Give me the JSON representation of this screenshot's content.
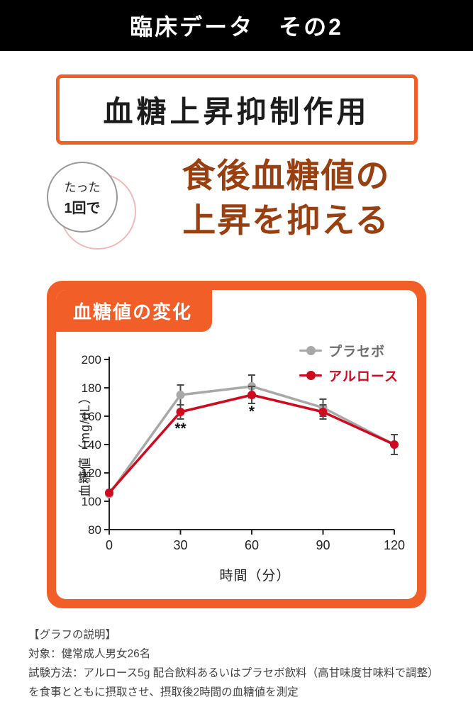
{
  "header": {
    "title": "臨床データ　その2"
  },
  "title_box": {
    "label": "血糖上昇抑制作用"
  },
  "bubble": {
    "line1": "たった",
    "line2": "1回で"
  },
  "headline": {
    "line1": "食後血糖値の",
    "line2": "上昇を抑える"
  },
  "chart_panel": {
    "label": "血糖値の変化"
  },
  "chart_data": {
    "type": "line",
    "title": "血糖値の変化",
    "x": [
      0,
      30,
      60,
      90,
      120
    ],
    "xlabel": "時間（分）",
    "ylabel": "血糖値（mg/dL）",
    "ylim": [
      80,
      200
    ],
    "yticks": [
      80,
      100,
      120,
      140,
      160,
      180,
      200
    ],
    "grid": false,
    "legend_position": "top-right",
    "series": [
      {
        "name": "プラセボ",
        "color": "#a8a8a8",
        "label_color": "#6e6e6e",
        "values": [
          105,
          175,
          181,
          166,
          140
        ],
        "error": [
          0,
          7,
          8,
          6,
          0
        ]
      },
      {
        "name": "アルロース",
        "color": "#cf0a1e",
        "label_color": "#cf0a1e",
        "values": [
          106,
          163,
          175,
          163,
          140
        ],
        "error": [
          0,
          5,
          6,
          5,
          7
        ]
      }
    ],
    "annotations": [
      {
        "text": "**",
        "x": 30,
        "y": 148
      },
      {
        "text": "*",
        "x": 60,
        "y": 160
      }
    ]
  },
  "notes": {
    "heading": "【グラフの説明】",
    "line1": "対象：健常成人男女26名",
    "line2": "試験方法：アルロース5g 配合飲料あるいはプラセボ飲料（高甘味度甘味料で調整）を食事とともに摂取させ、摂取後2時間の血糖値を測定"
  },
  "colors": {
    "accent_orange": "#f15e28",
    "headline_brown": "#993f10",
    "header_bg": "#000000",
    "placebo_gray": "#a8a8a8",
    "allulose_red": "#cf0a1e"
  }
}
